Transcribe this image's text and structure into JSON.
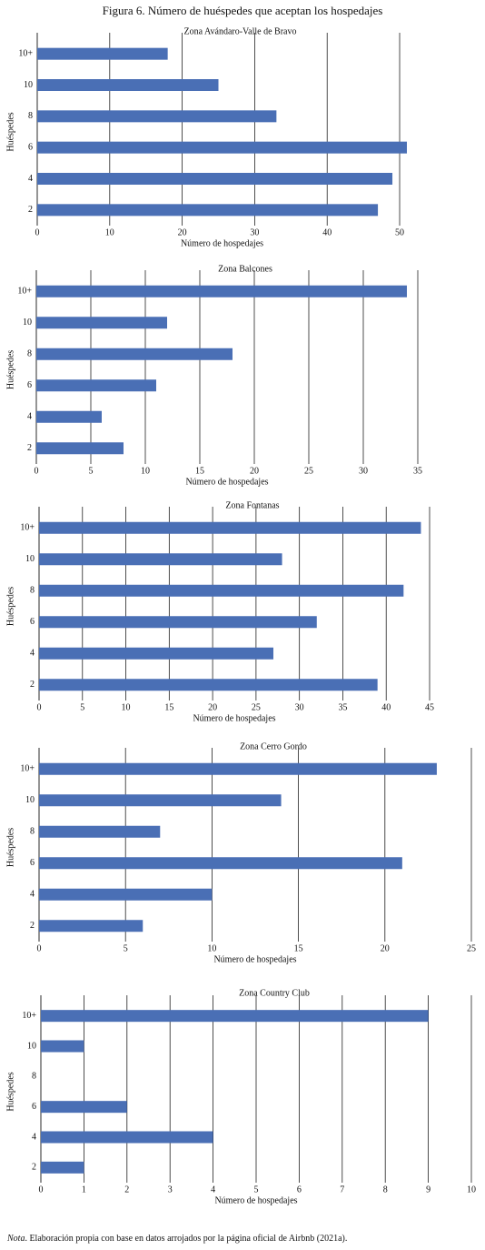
{
  "title": "Figura 6. Número de huéspedes que aceptan los hospedajes",
  "chart_data": [
    {
      "type": "bar",
      "orientation": "horizontal",
      "title": "Zona Avándaro-Valle de Bravo",
      "xlabel": "Número de hospedajes",
      "ylabel": "Huéspedes",
      "categories": [
        "2",
        "4",
        "6",
        "8",
        "10",
        "10+"
      ],
      "values": [
        47,
        49,
        51,
        33,
        25,
        18
      ],
      "color": "#4a6fb5",
      "xlim": [
        0,
        51
      ],
      "xticks": [
        0,
        10,
        20,
        30,
        40,
        50
      ],
      "grid": true
    },
    {
      "type": "bar",
      "orientation": "horizontal",
      "title": "Zona Balcones",
      "xlabel": "Número de hospedajes",
      "ylabel": "Huéspedes",
      "categories": [
        "2",
        "4",
        "6",
        "8",
        "10",
        "10+"
      ],
      "values": [
        8,
        6,
        11,
        18,
        12,
        34
      ],
      "color": "#4a6fb5",
      "xlim": [
        0,
        35
      ],
      "xticks": [
        0,
        5,
        10,
        15,
        20,
        25,
        30,
        35
      ],
      "grid": true
    },
    {
      "type": "bar",
      "orientation": "horizontal",
      "title": "Zona Fontanas",
      "xlabel": "Número de hospedajes",
      "ylabel": "Huéspedes",
      "categories": [
        "2",
        "4",
        "6",
        "8",
        "10",
        "10+"
      ],
      "values": [
        39,
        27,
        32,
        42,
        28,
        44
      ],
      "color": "#4a6fb5",
      "xlim": [
        0,
        45
      ],
      "xticks": [
        0,
        5,
        10,
        15,
        20,
        25,
        30,
        35,
        40,
        45
      ],
      "grid": true
    },
    {
      "type": "bar",
      "orientation": "horizontal",
      "title": "Zona Cerro Gordo",
      "xlabel": "Número de hospedajes",
      "ylabel": "Huéspedes",
      "categories": [
        "2",
        "4",
        "6",
        "8",
        "10",
        "10+"
      ],
      "values": [
        6,
        10,
        21,
        7,
        14,
        23
      ],
      "color": "#4a6fb5",
      "xlim": [
        0,
        25
      ],
      "xticks": [
        0,
        5,
        10,
        15,
        20,
        25
      ],
      "grid": true
    },
    {
      "type": "bar",
      "orientation": "horizontal",
      "title": "Zona Country Club",
      "xlabel": "Número de hospedajes",
      "ylabel": "Huéspedes",
      "categories": [
        "2",
        "4",
        "6",
        "8",
        "10",
        "10+"
      ],
      "values": [
        1,
        4,
        2,
        0,
        1,
        9
      ],
      "color": "#4a6fb5",
      "xlim": [
        0,
        10
      ],
      "xticks": [
        0,
        1,
        2,
        3,
        4,
        5,
        6,
        7,
        8,
        9,
        10
      ],
      "grid": true
    }
  ],
  "note": {
    "label": "Nota",
    "text": ". Elaboración propia con base en datos arrojados por la página oficial de Airbnb (2021a)."
  }
}
